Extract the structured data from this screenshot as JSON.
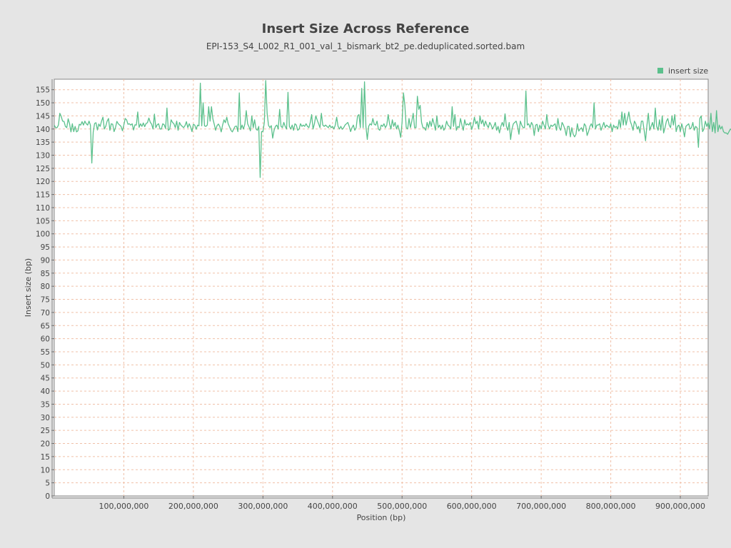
{
  "chart_data": {
    "type": "line",
    "title": "Insert Size Across Reference",
    "subtitle": "EPI-153_S4_L002_R1_001_val_1_bismark_bt2_pe.deduplicated.sorted.bam",
    "xlabel": "Position (bp)",
    "ylabel": "Insert size (bp)",
    "xlim": [
      0,
      940000000
    ],
    "ylim": [
      0,
      159
    ],
    "x_ticks": [
      100000000,
      200000000,
      300000000,
      400000000,
      500000000,
      600000000,
      700000000,
      800000000,
      900000000
    ],
    "x_tick_labels": [
      "100,000,000",
      "200,000,000",
      "300,000,000",
      "400,000,000",
      "500,000,000",
      "600,000,000",
      "700,000,000",
      "800,000,000",
      "900,000,000"
    ],
    "y_ticks": [
      0,
      5,
      10,
      15,
      20,
      25,
      30,
      35,
      40,
      45,
      50,
      55,
      60,
      65,
      70,
      75,
      80,
      85,
      90,
      95,
      100,
      105,
      110,
      115,
      120,
      125,
      130,
      135,
      140,
      145,
      150,
      155
    ],
    "grid": true,
    "legend": "top-right",
    "series": [
      {
        "name": "insert size",
        "color": "#5bc08c",
        "x_start": 0,
        "x_step": 2000000,
        "values": [
          141.5,
          140.5,
          140.5,
          141.5,
          146,
          144.8,
          143,
          142.9,
          141,
          140.5,
          143.9,
          142,
          138.9,
          142,
          139,
          141,
          138.9,
          139.3,
          141.8,
          141.5,
          142.8,
          141.5,
          143,
          142,
          141.5,
          143,
          141.5,
          127,
          138.8,
          142.1,
          142.4,
          139.6,
          141.9,
          141,
          143,
          144.5,
          140,
          141,
          143,
          144,
          139.5,
          142,
          141.8,
          139,
          140.5,
          142.9,
          142,
          141.5,
          141,
          139.3,
          141.5,
          144,
          143.5,
          141.8,
          142,
          141.5,
          142,
          139.6,
          141.6,
          141.5,
          146.5,
          140.6,
          142,
          141,
          142.3,
          140.9,
          142.1,
          142.4,
          144.2,
          142.6,
          141.8,
          140,
          145.7,
          140.5,
          141.6,
          142,
          140,
          140,
          142,
          141.6,
          140.2,
          148,
          139.5,
          140,
          143.5,
          142.5,
          142,
          140.5,
          143,
          139.5,
          142.5,
          141.5,
          141,
          140.5,
          141.3,
          142.8,
          140.5,
          142,
          140.8,
          139,
          141.8,
          141.5,
          139.9,
          141.5,
          141.2,
          157.5,
          141.2,
          150,
          141.2,
          141,
          141.5,
          148.5,
          143,
          148.5,
          143.9,
          141.8,
          139.5,
          141.3,
          141.9,
          140.9,
          138.9,
          141.5,
          143.5,
          142.4,
          144.5,
          142,
          140.8,
          139.5,
          138.9,
          140,
          141,
          141.1,
          139,
          153.8,
          139.8,
          141.5,
          140,
          141.9,
          147,
          142,
          140.8,
          139.3,
          145,
          140.5,
          143.5,
          140,
          139.5,
          141,
          121.5,
          139,
          139,
          142.5,
          158.5,
          146,
          141.4,
          140.5,
          141.3,
          136.5,
          139.5,
          141,
          141.5,
          140,
          147.5,
          141,
          140.5,
          142.5,
          141,
          140,
          154,
          141,
          140,
          141.5,
          139.5,
          142,
          141.5,
          139.5,
          140,
          142,
          141,
          141.5,
          141,
          142,
          141,
          140.5,
          142.5,
          145.5,
          140,
          142,
          145,
          143.4,
          142,
          140.5,
          146,
          141.5,
          141,
          141.5,
          141,
          140.5,
          141.5,
          140.5,
          141,
          140,
          141.5,
          144.5,
          141,
          140,
          141,
          139.9,
          140.5,
          141.5,
          142,
          142.5,
          141,
          139,
          140.5,
          141.5,
          139.5,
          140.5,
          145,
          145.5,
          140.5,
          155.5,
          140.5,
          158,
          141,
          136,
          141,
          142,
          141.5,
          144,
          141.8,
          141.5,
          143,
          140,
          139.5,
          141.5,
          141,
          142,
          140.5,
          141.5,
          145.5,
          142,
          140,
          143.5,
          141,
          142.5,
          140,
          141.5,
          139.5,
          136.8,
          142.5,
          153.8,
          149,
          140.5,
          140,
          144,
          140.5,
          143,
          146,
          140.5,
          140.5,
          152.5,
          147.5,
          149,
          142.5,
          140.5,
          140.5,
          139.5,
          142.5,
          140.5,
          143,
          141,
          144,
          142,
          139.5,
          145,
          140.5,
          141.5,
          140,
          141.5,
          139.5,
          140.5,
          143,
          141.5,
          141,
          140,
          148.5,
          141,
          145.5,
          139.5,
          141,
          140.5,
          144,
          141.5,
          139.5,
          143.5,
          141.5,
          142,
          141.5,
          142.5,
          139.8,
          141.5,
          144.5,
          142,
          143,
          140,
          145,
          142,
          143.5,
          141,
          143,
          141.5,
          140.5,
          142.5,
          141.5,
          140,
          141,
          142.5,
          139.5,
          141,
          138.5,
          141,
          142.5,
          141,
          145.8,
          141,
          139.5,
          142.5,
          136,
          140,
          142,
          142.5,
          143,
          141,
          138,
          143,
          141.5,
          140.5,
          140.5,
          154.5,
          141.5,
          142,
          140.5,
          142.5,
          141.5,
          137.5,
          141.5,
          141.8,
          139,
          141.5,
          140,
          143,
          141.5,
          140,
          145.5,
          141.5,
          140,
          141.5,
          141,
          141.5,
          142,
          139.5,
          144,
          140.5,
          139.5,
          142.5,
          141.5,
          140,
          137.5,
          141,
          141,
          137,
          140.5,
          138,
          137,
          138,
          142,
          139.2,
          140,
          140.5,
          139,
          142,
          141.2,
          137.5,
          139,
          141,
          142,
          140.5,
          150,
          140,
          141.5,
          141.5,
          142,
          139.5,
          141,
          142.5,
          140.5,
          141.5,
          141,
          140.5,
          142,
          139,
          141.5,
          140.5,
          141,
          140,
          143.5,
          140.5,
          146.5,
          141.5,
          146,
          141.5,
          144,
          146.5,
          143,
          141.5,
          139.5,
          143,
          142,
          140,
          141,
          138.5,
          143,
          143,
          139.5,
          135.5,
          141.5,
          146,
          139.5,
          141,
          142.5,
          140,
          148,
          141,
          139.5,
          143.5,
          139.5,
          145,
          138.5,
          140.5,
          143,
          144,
          141.5,
          140.5,
          145,
          141.5,
          145.5,
          139,
          141,
          141.5,
          139,
          142,
          140,
          137,
          141,
          141.5,
          142,
          140,
          140.5,
          142.5,
          139.5,
          141,
          140.5,
          133,
          144,
          145,
          139,
          140,
          143,
          141,
          142.5,
          140,
          146,
          139,
          142.5,
          138.5,
          147,
          139,
          141.5,
          140,
          141,
          139,
          138.5,
          138.5,
          138,
          139,
          140,
          139.5
        ]
      }
    ]
  }
}
